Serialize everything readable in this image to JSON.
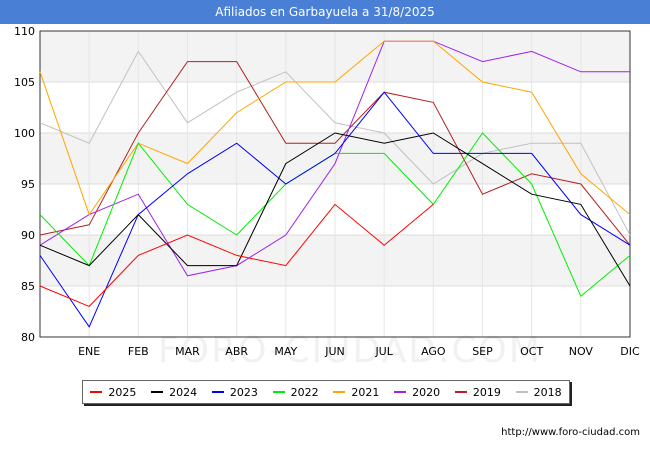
{
  "title": "Afiliados en Garbayuela a 31/8/2025",
  "source": "http://www.foro-ciudad.com",
  "watermark": "FORO-CIUDAD.COM",
  "chart_data": {
    "type": "line",
    "title": "Afiliados en Garbayuela a 31/8/2025",
    "categories": [
      "",
      "ENE",
      "FEB",
      "MAR",
      "ABR",
      "MAY",
      "JUN",
      "JUL",
      "AGO",
      "SEP",
      "OCT",
      "NOV",
      "DIC"
    ],
    "ylim": [
      80,
      110
    ],
    "yticks": [
      80,
      85,
      90,
      95,
      100,
      105,
      110
    ],
    "grid": true,
    "legend_position": "bottom",
    "series": [
      {
        "name": "2025",
        "color": "#ff0000",
        "values": [
          85,
          83,
          88,
          90,
          88,
          87,
          93,
          89,
          93,
          null,
          null,
          null,
          null
        ]
      },
      {
        "name": "2024",
        "color": "#000000",
        "values": [
          89,
          87,
          92,
          87,
          87,
          97,
          100,
          99,
          100,
          97,
          94,
          93,
          85
        ]
      },
      {
        "name": "2023",
        "color": "#0000ff",
        "values": [
          88,
          81,
          92,
          96,
          99,
          95,
          98,
          104,
          98,
          98,
          98,
          92,
          89
        ]
      },
      {
        "name": "2022",
        "color": "#00ee00",
        "values": [
          92,
          87,
          99,
          93,
          90,
          95,
          98,
          98,
          93,
          100,
          95,
          84,
          88
        ]
      },
      {
        "name": "2021",
        "color": "#ffa500",
        "values": [
          106,
          92,
          99,
          97,
          102,
          105,
          105,
          109,
          109,
          105,
          104,
          96,
          92
        ]
      },
      {
        "name": "2020",
        "color": "#a020f0",
        "values": [
          89,
          92,
          94,
          86,
          87,
          90,
          97,
          109,
          109,
          107,
          108,
          106,
          106
        ]
      },
      {
        "name": "2019",
        "color": "#b22222",
        "values": [
          90,
          91,
          100,
          107,
          107,
          99,
          99,
          104,
          103,
          94,
          96,
          95,
          89
        ]
      },
      {
        "name": "2018",
        "color": "#c0c0c0",
        "values": [
          101,
          99,
          108,
          101,
          104,
          106,
          101,
          100,
          95,
          98,
          99,
          99,
          90
        ]
      }
    ]
  }
}
